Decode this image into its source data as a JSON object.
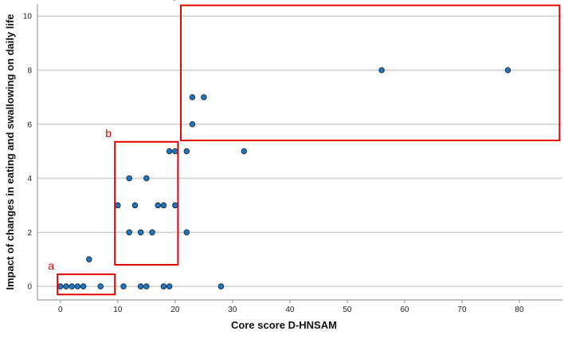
{
  "chart_data": {
    "type": "scatter",
    "xlabel": "Core score D-HNSAM",
    "ylabel": "Impact of changes in eating and swallowing on daily life",
    "xlim": [
      -4,
      87.5
    ],
    "ylim": [
      -0.5,
      10.45
    ],
    "xticks": [
      0,
      10,
      20,
      30,
      40,
      50,
      60,
      70,
      80
    ],
    "yticks": [
      0,
      2,
      4,
      6,
      8,
      10
    ],
    "grid": "horizontal",
    "point_color": "#1f77c4",
    "points": [
      [
        0,
        0
      ],
      [
        1,
        0
      ],
      [
        2,
        0
      ],
      [
        3,
        0
      ],
      [
        4,
        0
      ],
      [
        7,
        0
      ],
      [
        11,
        0
      ],
      [
        14,
        0
      ],
      [
        15,
        0
      ],
      [
        18,
        0
      ],
      [
        19,
        0
      ],
      [
        28,
        0
      ],
      [
        5,
        1
      ],
      [
        12,
        2
      ],
      [
        14,
        2
      ],
      [
        16,
        2
      ],
      [
        22,
        2
      ],
      [
        10,
        3
      ],
      [
        13,
        3
      ],
      [
        17,
        3
      ],
      [
        18,
        3
      ],
      [
        20,
        3
      ],
      [
        12,
        4
      ],
      [
        15,
        4
      ],
      [
        19,
        5
      ],
      [
        20,
        5
      ],
      [
        22,
        5
      ],
      [
        32,
        5
      ],
      [
        23,
        6
      ],
      [
        23,
        7
      ],
      [
        25,
        7
      ],
      [
        56,
        8
      ],
      [
        78,
        8
      ]
    ],
    "annotations": [
      {
        "label": "a",
        "x_range": [
          -0.5,
          9.5
        ],
        "y_range": [
          -0.3,
          0.45
        ]
      },
      {
        "label": "b",
        "x_range": [
          9.5,
          20.5
        ],
        "y_range": [
          0.8,
          5.35
        ]
      },
      {
        "label": "c",
        "x_range": [
          21,
          87
        ],
        "y_range": [
          5.4,
          10.4
        ]
      }
    ],
    "annotation_color": "#e00000"
  }
}
